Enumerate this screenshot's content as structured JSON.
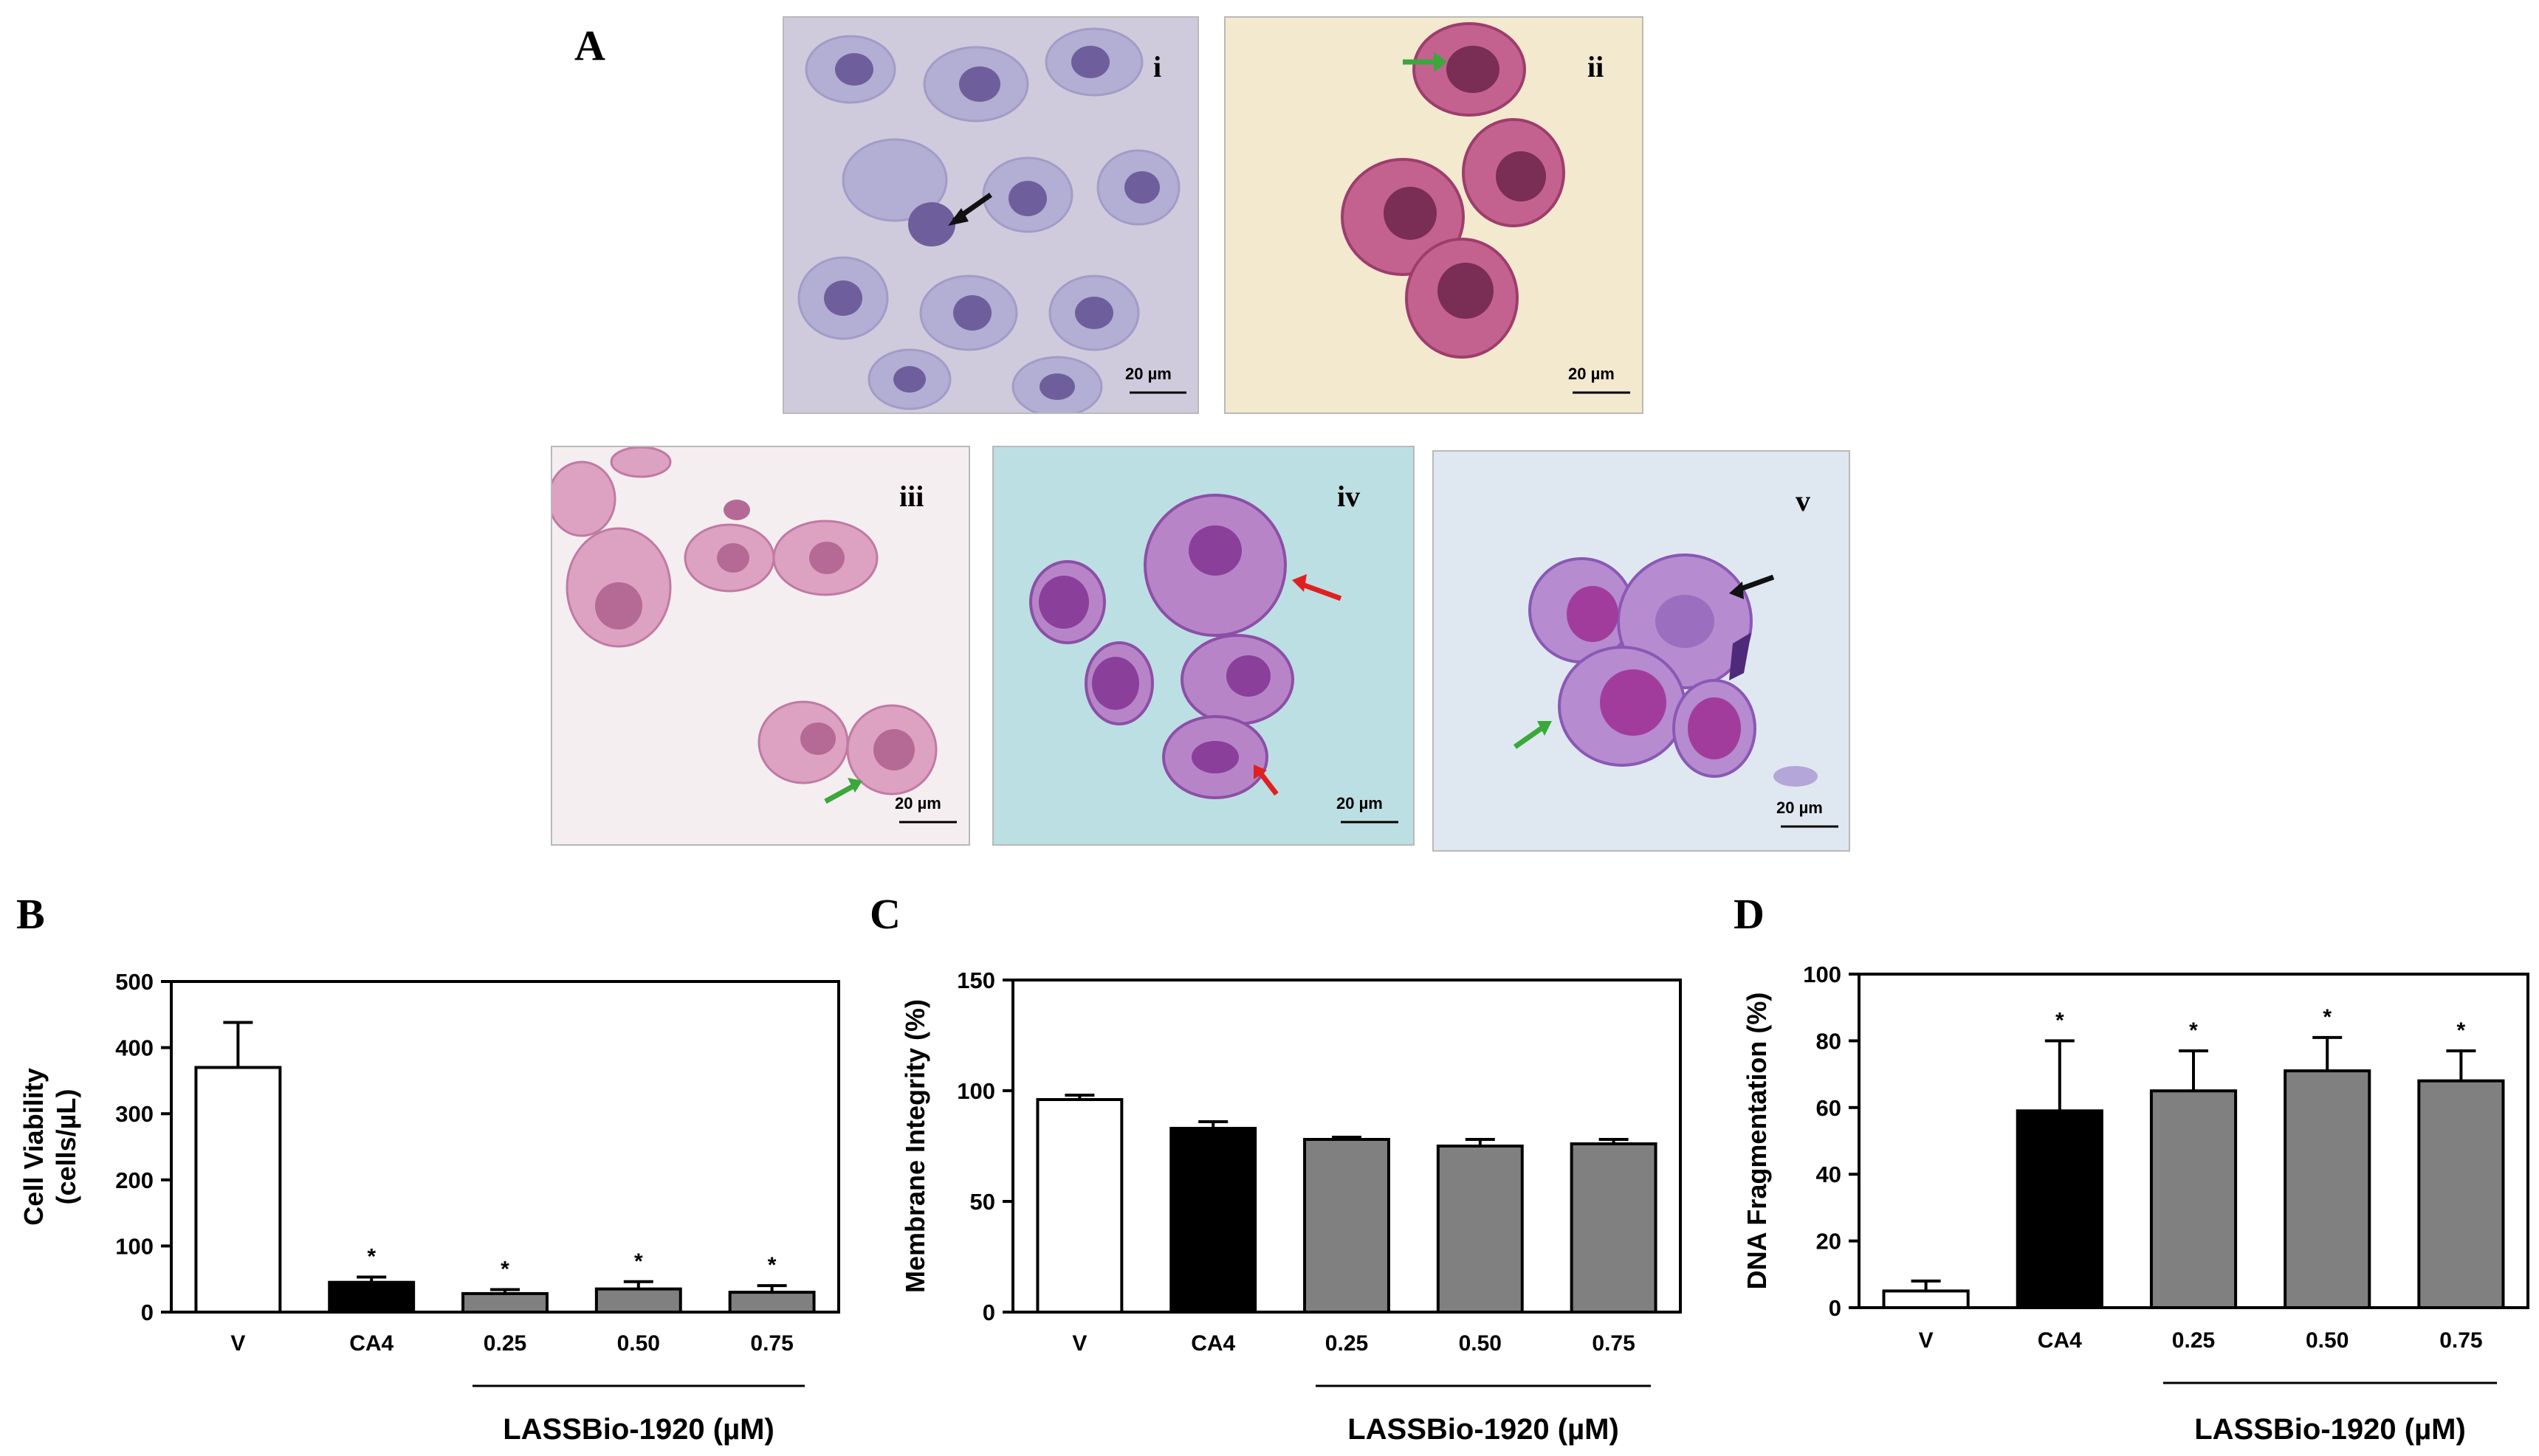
{
  "figure": {
    "panel_letters": [
      "A",
      "B",
      "C",
      "D"
    ],
    "micrographs": [
      {
        "label": "i",
        "scale_bar": "20 µm",
        "stain": "#9a8fc8"
      },
      {
        "label": "ii",
        "scale_bar": "20 µm",
        "stain": "#b8507e"
      },
      {
        "label": "iii",
        "scale_bar": "20 µm",
        "stain": "#d58db6"
      },
      {
        "label": "iv",
        "scale_bar": "20 µm",
        "stain": "#a05fb0"
      },
      {
        "label": "v",
        "scale_bar": "20 µm",
        "stain": "#9c62bf"
      }
    ],
    "arrow_colors": {
      "black": "#111111",
      "green": "#3aa83a",
      "red": "#e02020"
    }
  },
  "chart_data": [
    {
      "panel": "B",
      "type": "bar",
      "categories": [
        "V",
        "CA4",
        "0.25",
        "0.50",
        "0.75"
      ],
      "values": [
        370,
        45,
        28,
        35,
        30
      ],
      "errors": [
        68,
        8,
        6,
        11,
        10
      ],
      "significant": [
        false,
        true,
        true,
        true,
        true
      ],
      "significance_marker": "*",
      "ylabel_line1": "Cell Viability",
      "ylabel_line2": "(cells/µL)",
      "xlabel": "LASSBio-1920 (µM)",
      "ylim": [
        0,
        500
      ],
      "yticks": [
        0,
        100,
        200,
        300,
        400,
        500
      ],
      "bar_colors": [
        "#ffffff",
        "#000000",
        "#808080",
        "#808080",
        "#808080"
      ]
    },
    {
      "panel": "C",
      "type": "bar",
      "categories": [
        "V",
        "CA4",
        "0.25",
        "0.50",
        "0.75"
      ],
      "values": [
        96,
        83,
        78,
        75,
        76
      ],
      "errors": [
        2,
        3,
        1,
        3,
        2
      ],
      "significant": [
        false,
        false,
        false,
        false,
        false
      ],
      "significance_marker": "*",
      "ylabel_line1": "Membrane Integrity (%)",
      "ylabel_line2": "",
      "xlabel": "LASSBio-1920 (µM)",
      "ylim": [
        0,
        150
      ],
      "yticks": [
        0,
        50,
        100,
        150
      ],
      "bar_colors": [
        "#ffffff",
        "#000000",
        "#808080",
        "#808080",
        "#808080"
      ]
    },
    {
      "panel": "D",
      "type": "bar",
      "categories": [
        "V",
        "CA4",
        "0.25",
        "0.50",
        "0.75"
      ],
      "values": [
        5,
        59,
        65,
        71,
        68
      ],
      "errors": [
        3,
        21,
        12,
        10,
        9
      ],
      "significant": [
        false,
        true,
        true,
        true,
        true
      ],
      "significance_marker": "*",
      "ylabel_line1": "DNA Fragmentation (%)",
      "ylabel_line2": "",
      "xlabel": "LASSBio-1920 (µM)",
      "ylim": [
        0,
        100
      ],
      "yticks": [
        0,
        20,
        40,
        60,
        80,
        100
      ],
      "bar_colors": [
        "#ffffff",
        "#000000",
        "#808080",
        "#808080",
        "#808080"
      ]
    }
  ]
}
